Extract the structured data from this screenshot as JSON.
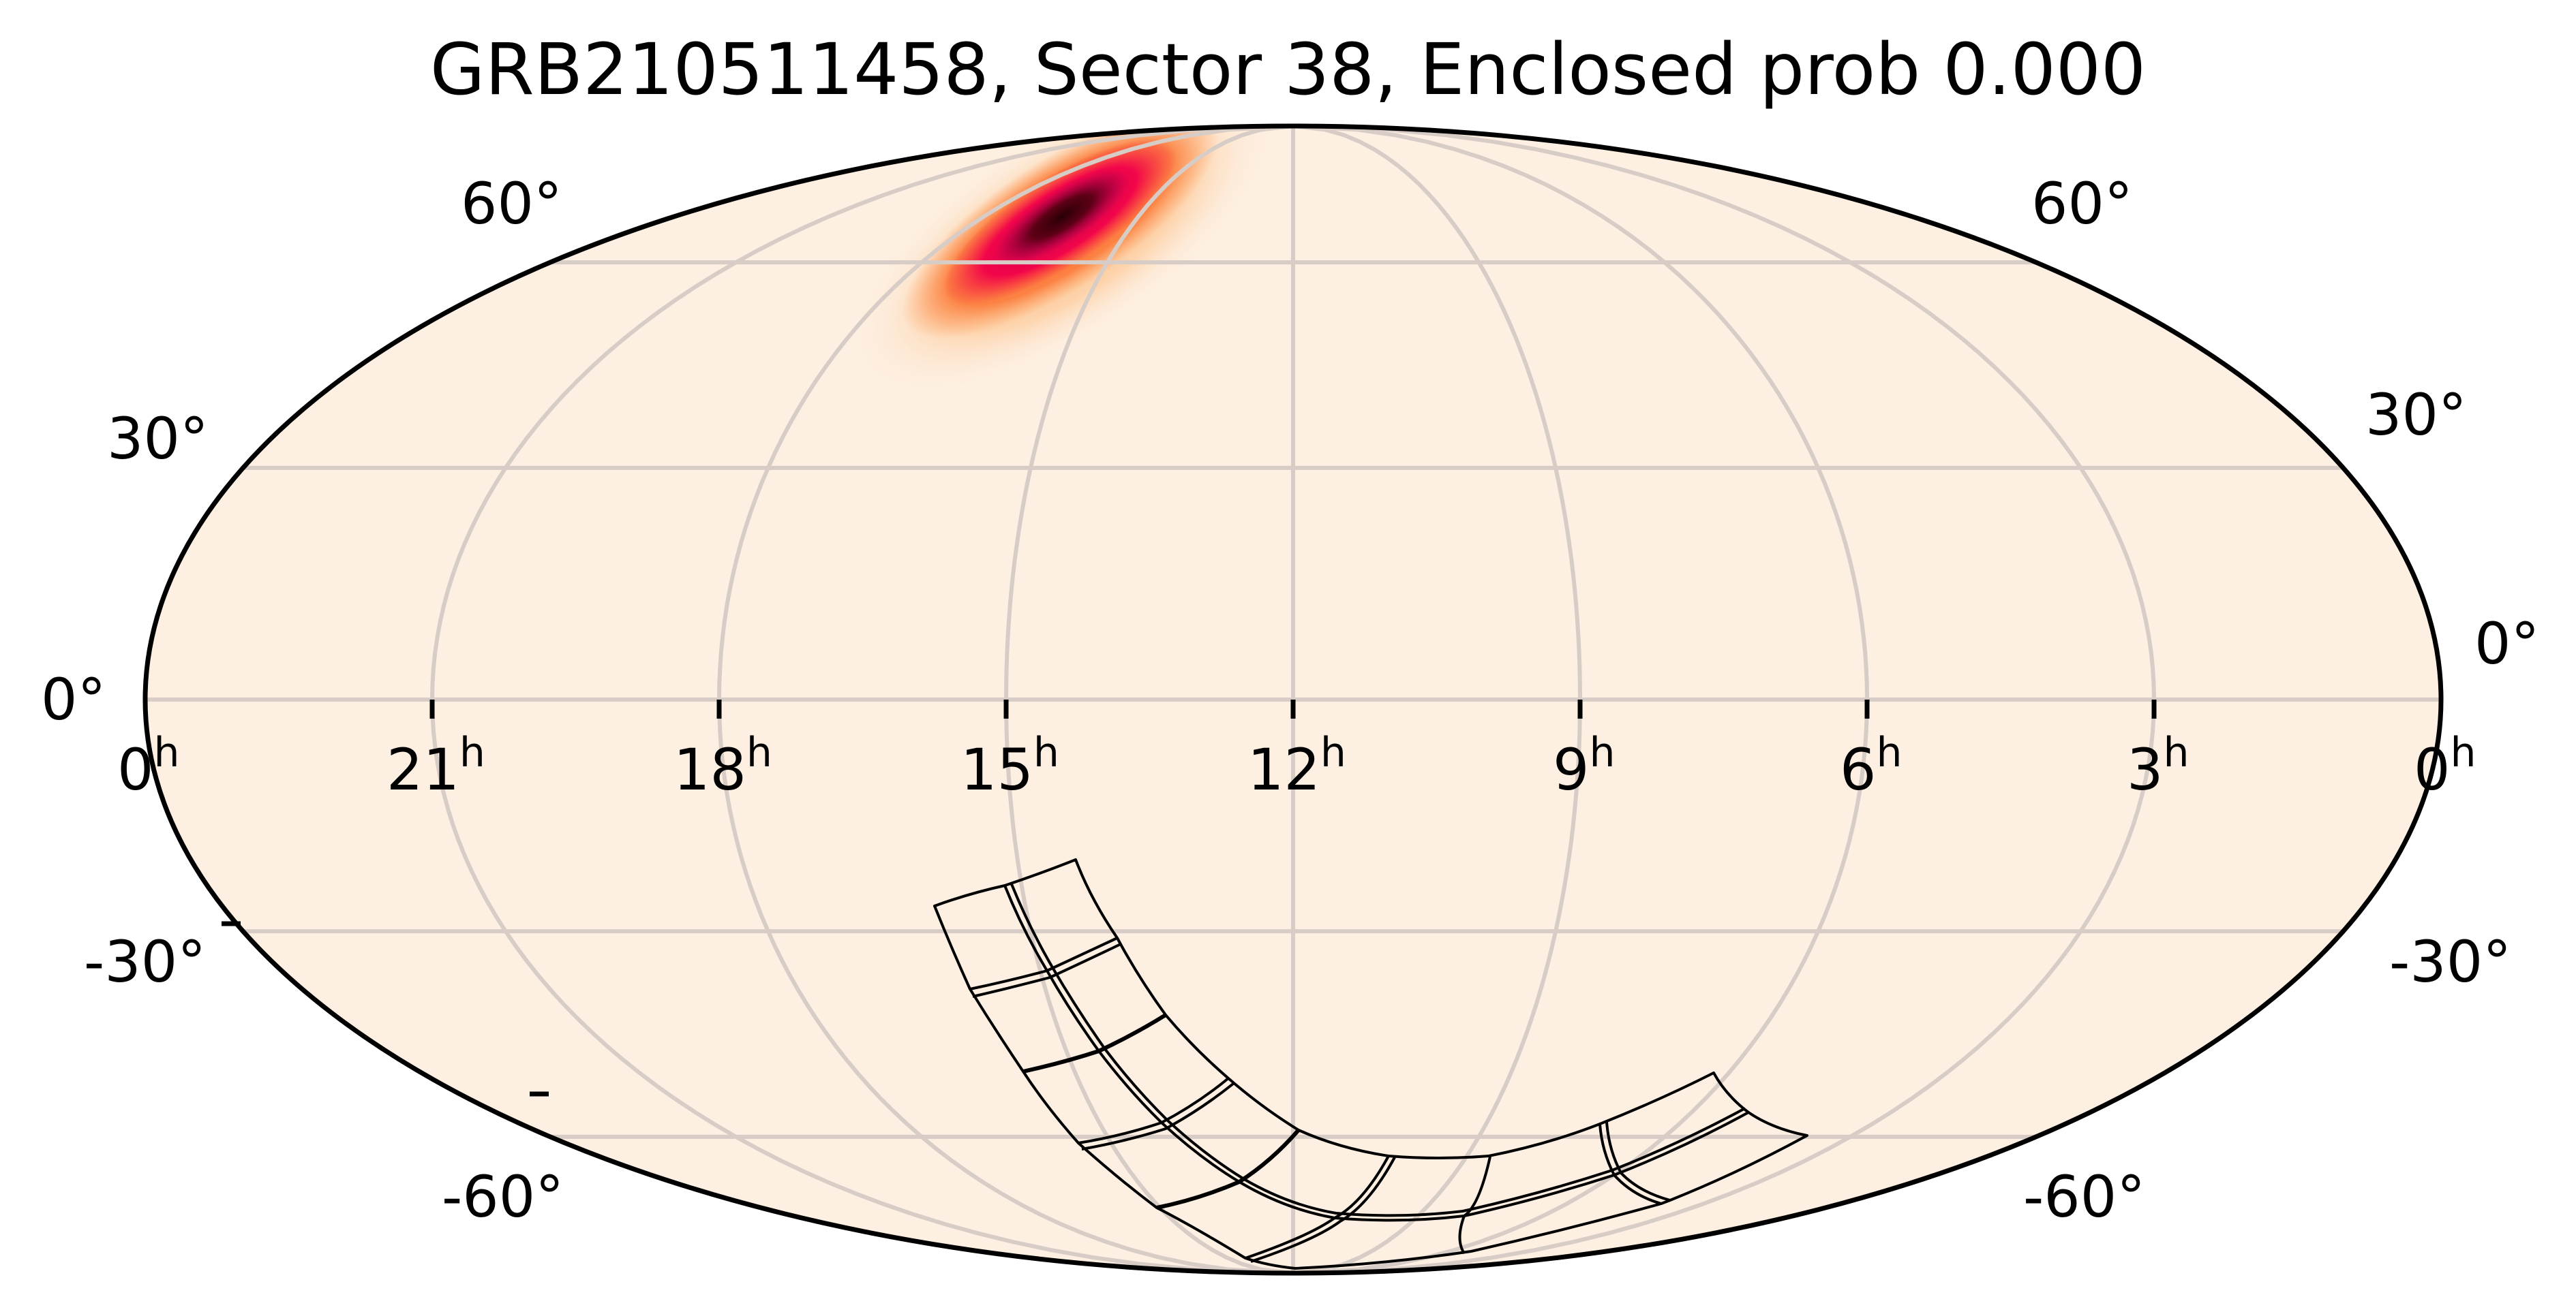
{
  "chart_data": {
    "type": "heatmap",
    "projection": "mollweide",
    "title": "GRB210511458, Sector 38, Enclosed prob 0.000",
    "xlabel": "",
    "ylabel": "",
    "grid": true,
    "ra_tick_labels": [
      "0h",
      "21h",
      "18h",
      "15h",
      "12h",
      "9h",
      "6h",
      "3h",
      "0h"
    ],
    "ra_ticks_hours": [
      24,
      21,
      18,
      15,
      12,
      9,
      6,
      3,
      0
    ],
    "dec_tick_labels": [
      "60°",
      "30°",
      "0°",
      "-30°",
      "-60°"
    ],
    "dec_ticks_deg": [
      60,
      30,
      0,
      -30,
      -60
    ],
    "heatmap": {
      "description": "GRB localization probability density",
      "colormap": "magma_r-like (cream -> orange -> red -> magenta -> black)",
      "peak_ra_hours": 14.6,
      "peak_dec_deg": 68,
      "shape": "elongated ellipse oriented NE-SW, extending roughly from RA 17h Dec 45° to RA 12.5h Dec 80°"
    },
    "enclosed_probability": 0.0,
    "sector": 38,
    "grb_id": "GRB210511458",
    "footprint": {
      "description": "TESS Sector 38 camera/CCD footprint outlines (4 cameras x 4 CCDs) in the southern sky",
      "tiles_count": 16
    }
  },
  "labels": {
    "title": "GRB210511458, Sector 38, Enclosed prob 0.000",
    "ra": [
      {
        "num": "0",
        "sup": "h"
      },
      {
        "num": "21",
        "sup": "h"
      },
      {
        "num": "18",
        "sup": "h"
      },
      {
        "num": "15",
        "sup": "h"
      },
      {
        "num": "12",
        "sup": "h"
      },
      {
        "num": "9",
        "sup": "h"
      },
      {
        "num": "6",
        "sup": "h"
      },
      {
        "num": "3",
        "sup": "h"
      },
      {
        "num": "0",
        "sup": "h"
      }
    ],
    "dec_left": [
      "60°",
      "30°",
      "0°",
      "-30°",
      "-60°"
    ],
    "dec_right": [
      "60°",
      "30°",
      "0°",
      "-30°",
      "-60°"
    ]
  },
  "colors": {
    "background": "#ffffff",
    "sky_fill": "#fdefe1",
    "grid": "#d7cdc6",
    "outline": "#000000",
    "heat_outer": "#fdb06d",
    "heat_mid": "#fb5a2a",
    "heat_inner": "#f2054a",
    "heat_core": "#a9004f",
    "heat_peak": "#2a0005"
  }
}
